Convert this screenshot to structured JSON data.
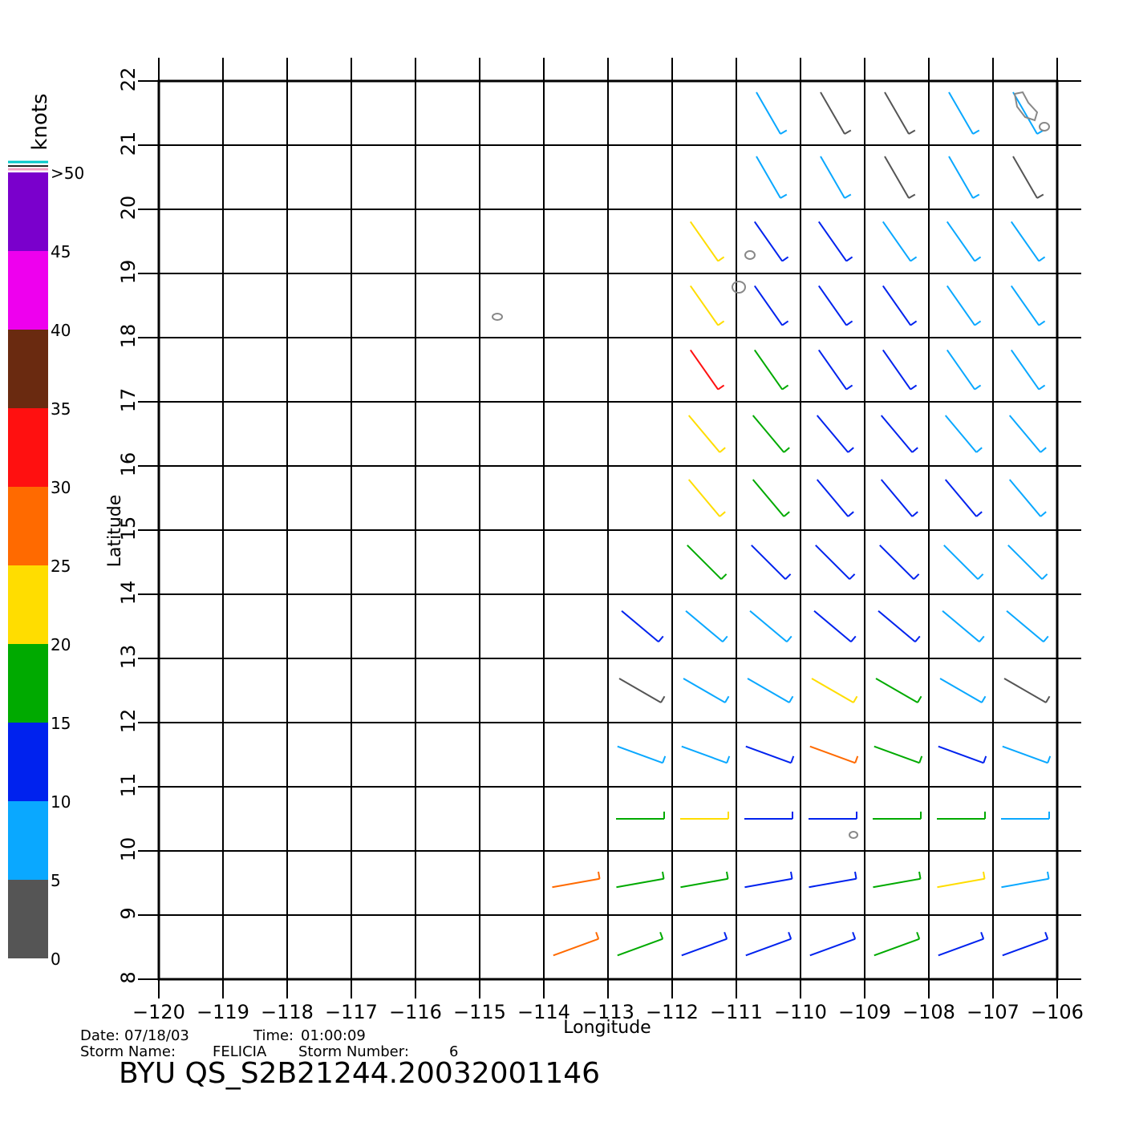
{
  "map": {
    "xlabel": "Longitude",
    "ylabel": "Latitude",
    "xlim": [
      -120,
      -106
    ],
    "ylim": [
      8,
      22
    ],
    "xticks": [
      {
        "value": -120,
        "label": "−120"
      },
      {
        "value": -119,
        "label": "−119"
      },
      {
        "value": -118,
        "label": "−118"
      },
      {
        "value": -117,
        "label": "−117"
      },
      {
        "value": -116,
        "label": "−116"
      },
      {
        "value": -115,
        "label": "−115"
      },
      {
        "value": -114,
        "label": "−114"
      },
      {
        "value": -113,
        "label": "−113"
      },
      {
        "value": -112,
        "label": "−112"
      },
      {
        "value": -111,
        "label": "−111"
      },
      {
        "value": -110,
        "label": "−110"
      },
      {
        "value": -109,
        "label": "−109"
      },
      {
        "value": -108,
        "label": "−108"
      },
      {
        "value": -107,
        "label": "−107"
      },
      {
        "value": -106,
        "label": "−106"
      }
    ],
    "yticks": [
      8,
      9,
      10,
      11,
      12,
      13,
      14,
      15,
      16,
      17,
      18,
      19,
      20,
      21,
      22
    ]
  },
  "colorbar": {
    "title": "knots",
    "ticks": [
      0,
      5,
      10,
      15,
      20,
      25,
      30,
      35,
      40,
      45,
      {
        "value": 50,
        "label": ">50"
      }
    ],
    "colors": [
      "#555555",
      "#0aa8ff",
      "#0022ee",
      "#00aa00",
      "#ffdd00",
      "#ff6a00",
      "#ff1010",
      "#6a2a10",
      "#ee00ee",
      "#7a00cc"
    ]
  },
  "wind": {
    "lons": [
      -113.5,
      -112.5,
      -111.5,
      -110.5,
      -109.5,
      -108.5,
      -107.5,
      -106.5
    ],
    "lats": [
      8.5,
      9.5,
      10.5,
      11.5,
      12.5,
      13.5,
      14.5,
      15.5,
      16.5,
      17.5,
      18.5,
      19.5,
      20.5,
      21.5
    ],
    "speed": [
      [
        28,
        15,
        14,
        12,
        12,
        15,
        13,
        10
      ],
      [
        27,
        16,
        15,
        12,
        12,
        18,
        20,
        7
      ],
      [
        null,
        16,
        24,
        13,
        10,
        16,
        18,
        6
      ],
      [
        null,
        6,
        9,
        14,
        27,
        17,
        10,
        6
      ],
      [
        null,
        4,
        7,
        8,
        22,
        16,
        8,
        4
      ],
      [
        null,
        10,
        9,
        8,
        13,
        10,
        8,
        7
      ],
      [
        null,
        null,
        16,
        13,
        12,
        11,
        9,
        8
      ],
      [
        null,
        null,
        22,
        17,
        13,
        11,
        10,
        8
      ],
      [
        null,
        null,
        24,
        17,
        13,
        11,
        9,
        8
      ],
      [
        null,
        null,
        30,
        16,
        12,
        11,
        9,
        8
      ],
      [
        null,
        null,
        24,
        13,
        12,
        10,
        8,
        7
      ],
      [
        null,
        null,
        20,
        12,
        11,
        9,
        8,
        7
      ],
      [
        null,
        null,
        null,
        9,
        7,
        4,
        7,
        4
      ],
      [
        null,
        null,
        null,
        8,
        4,
        3,
        7,
        7
      ]
    ],
    "row_direction": [
      20,
      10,
      0,
      -20,
      -30,
      -40,
      -45,
      -50,
      -50,
      -55,
      -55,
      -55,
      -60,
      -60
    ]
  },
  "info": {
    "date_label": "Date:",
    "date": "07/18/03",
    "time_label": "Time:",
    "time": "01:00:09",
    "storm_name_label": "Storm Name:",
    "storm_name": "FELICIA",
    "storm_number_label": "Storm Number:",
    "storm_number": "6",
    "file": "BYU QS_S2B21244.20032001146"
  }
}
